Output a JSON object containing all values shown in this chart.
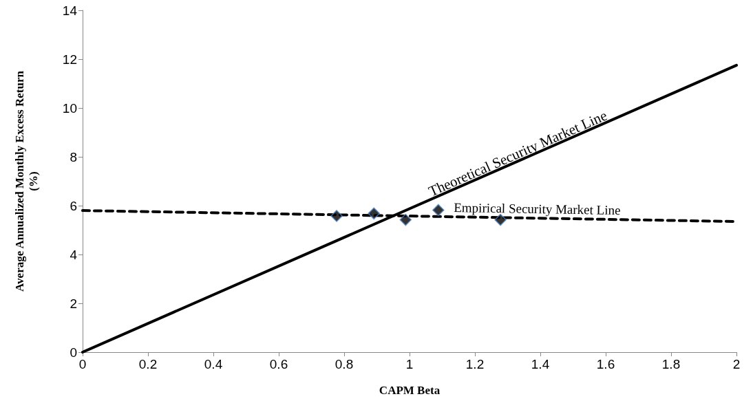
{
  "chart_data": {
    "type": "line",
    "xlabel": "CAPM Beta",
    "ylabel": "Average Annualized Monthly Excess Return (%)",
    "xlim": [
      0,
      2
    ],
    "xticks": [
      0,
      0.2,
      0.4,
      0.6,
      0.8,
      1,
      1.2,
      1.4,
      1.6,
      1.8,
      2
    ],
    "ylim": [
      0,
      14
    ],
    "yticks": [
      0,
      2,
      4,
      6,
      8,
      10,
      12,
      14
    ],
    "grid": false,
    "series": [
      {
        "color": "#000000",
        "line_style": "solid",
        "marker": "none",
        "x": [
          0,
          2
        ],
        "values": [
          0,
          11.75
        ]
      },
      {
        "color": "#000000",
        "line_style": "dashed",
        "marker": "none",
        "x": [
          0,
          2
        ],
        "values": [
          5.8,
          5.35
        ]
      },
      {
        "type": "scatter",
        "color": "#000000",
        "marker": "diamond",
        "x": [
          0.777,
          0.891,
          0.988,
          1.088,
          1.278
        ],
        "values": [
          5.58,
          5.68,
          5.42,
          5.82,
          5.42
        ]
      }
    ],
    "annotations": [
      {
        "text": "Theoretical Security Market Line",
        "x": 1.34,
        "y": 7.87
      },
      {
        "text": "Empirical Security Market Line",
        "x": 1.39,
        "y": 5.49
      }
    ]
  }
}
